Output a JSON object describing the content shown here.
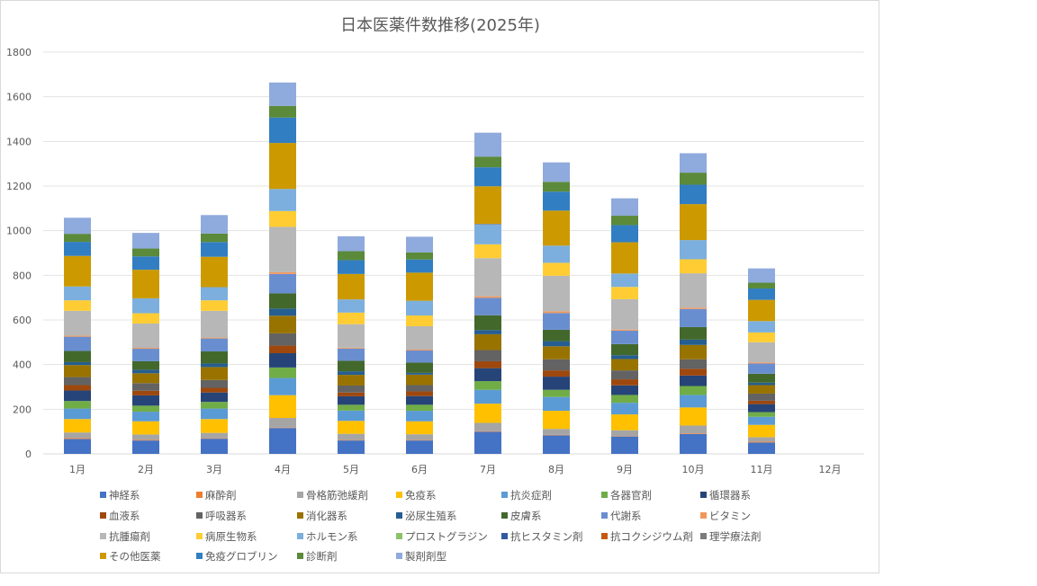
{
  "chart_data": {
    "type": "bar",
    "stacked": true,
    "title": "日本医薬件数推移(2025年)",
    "xlabel": "",
    "ylabel": "",
    "ylim": [
      0,
      1800
    ],
    "yticks": [
      0,
      200,
      400,
      600,
      800,
      1000,
      1200,
      1400,
      1600,
      1800
    ],
    "grid": true,
    "legend_position": "bottom",
    "categories": [
      "1月",
      "2月",
      "3月",
      "4月",
      "5月",
      "6月",
      "7月",
      "8月",
      "9月",
      "10月",
      "11月",
      "12月"
    ],
    "series": [
      {
        "name": "神経系",
        "color": "#4472C4",
        "values": [
          67,
          60,
          68,
          116,
          60,
          60,
          99,
          83,
          78,
          89,
          51,
          0
        ]
      },
      {
        "name": "麻酔剤",
        "color": "#ED7D31",
        "values": [
          4,
          3,
          2,
          2,
          2,
          2,
          2,
          2,
          2,
          3,
          4,
          0
        ]
      },
      {
        "name": "骨格筋弛緩剤",
        "color": "#A5A5A5",
        "values": [
          25,
          24,
          24,
          43,
          28,
          26,
          38,
          27,
          26,
          35,
          20,
          0
        ]
      },
      {
        "name": "免疫系",
        "color": "#FFC000",
        "values": [
          60,
          59,
          62,
          102,
          58,
          58,
          86,
          81,
          71,
          81,
          55,
          0
        ]
      },
      {
        "name": "抗炎症剤",
        "color": "#5B9BD5",
        "values": [
          47,
          43,
          47,
          77,
          46,
          47,
          62,
          62,
          52,
          56,
          36,
          0
        ]
      },
      {
        "name": "各器官剤",
        "color": "#70AD47",
        "values": [
          34,
          27,
          30,
          47,
          26,
          27,
          39,
          32,
          35,
          40,
          21,
          0
        ]
      },
      {
        "name": "循環器系",
        "color": "#264478",
        "values": [
          47,
          46,
          42,
          64,
          38,
          39,
          58,
          59,
          43,
          47,
          36,
          0
        ]
      },
      {
        "name": "血液系",
        "color": "#9E480E",
        "values": [
          24,
          21,
          21,
          34,
          17,
          21,
          31,
          28,
          27,
          30,
          15,
          0
        ]
      },
      {
        "name": "呼吸器系",
        "color": "#636363",
        "values": [
          36,
          34,
          35,
          55,
          31,
          28,
          50,
          50,
          40,
          43,
          32,
          0
        ]
      },
      {
        "name": "消化器系",
        "color": "#997300",
        "values": [
          54,
          44,
          58,
          79,
          48,
          47,
          71,
          58,
          51,
          64,
          38,
          0
        ]
      },
      {
        "name": "泌尿生殖系",
        "color": "#255E91",
        "values": [
          13,
          16,
          16,
          32,
          16,
          8,
          19,
          23,
          17,
          24,
          11,
          0
        ]
      },
      {
        "name": "皮膚系",
        "color": "#43682B",
        "values": [
          50,
          38,
          54,
          68,
          47,
          46,
          66,
          51,
          50,
          56,
          40,
          0
        ]
      },
      {
        "name": "代謝系",
        "color": "#698ED0",
        "values": [
          64,
          56,
          58,
          87,
          55,
          54,
          78,
          75,
          60,
          81,
          46,
          0
        ]
      },
      {
        "name": "ビタミン",
        "color": "#F1975A",
        "values": [
          5,
          4,
          4,
          8,
          4,
          4,
          7,
          8,
          5,
          6,
          5,
          0
        ]
      },
      {
        "name": "抗腫瘍剤",
        "color": "#B7B7B7",
        "values": [
          111,
          109,
          120,
          203,
          105,
          105,
          171,
          159,
          136,
          154,
          90,
          0
        ]
      },
      {
        "name": "病原生物系",
        "color": "#FFCD33",
        "values": [
          47,
          46,
          47,
          71,
          52,
          48,
          62,
          58,
          55,
          63,
          44,
          0
        ]
      },
      {
        "name": "ホルモン系",
        "color": "#7CAFDD",
        "values": [
          62,
          67,
          59,
          99,
          59,
          66,
          89,
          77,
          60,
          86,
          51,
          0
        ]
      },
      {
        "name": "プロストグラジン",
        "color": "#8CC168",
        "values": [
          0,
          0,
          0,
          0,
          0,
          0,
          0,
          0,
          0,
          0,
          0,
          0
        ]
      },
      {
        "name": "抗ヒスタミン剤",
        "color": "#335AA1",
        "values": [
          0,
          0,
          0,
          0,
          0,
          0,
          0,
          0,
          0,
          0,
          0,
          0
        ]
      },
      {
        "name": "抗コクシジウム剤",
        "color": "#C65911",
        "values": [
          0,
          0,
          0,
          0,
          0,
          0,
          0,
          0,
          0,
          0,
          0,
          0
        ]
      },
      {
        "name": "理学療法剤",
        "color": "#7B7B7B",
        "values": [
          0,
          0,
          0,
          0,
          0,
          0,
          3,
          0,
          0,
          0,
          0,
          0
        ]
      },
      {
        "name": "その他医薬",
        "color": "#CC9A00",
        "values": [
          137,
          128,
          136,
          206,
          114,
          126,
          168,
          157,
          140,
          161,
          95,
          0
        ]
      },
      {
        "name": "免疫グロブリン",
        "color": "#327EC2",
        "values": [
          63,
          60,
          66,
          114,
          62,
          59,
          85,
          85,
          77,
          87,
          51,
          0
        ]
      },
      {
        "name": "診断剤",
        "color": "#5B8A3A",
        "values": [
          36,
          35,
          38,
          52,
          40,
          32,
          48,
          44,
          42,
          54,
          26,
          0
        ]
      },
      {
        "name": "製剤剤型",
        "color": "#8FAADC",
        "values": [
          72,
          70,
          83,
          105,
          67,
          70,
          107,
          87,
          78,
          87,
          64,
          0
        ]
      }
    ]
  }
}
